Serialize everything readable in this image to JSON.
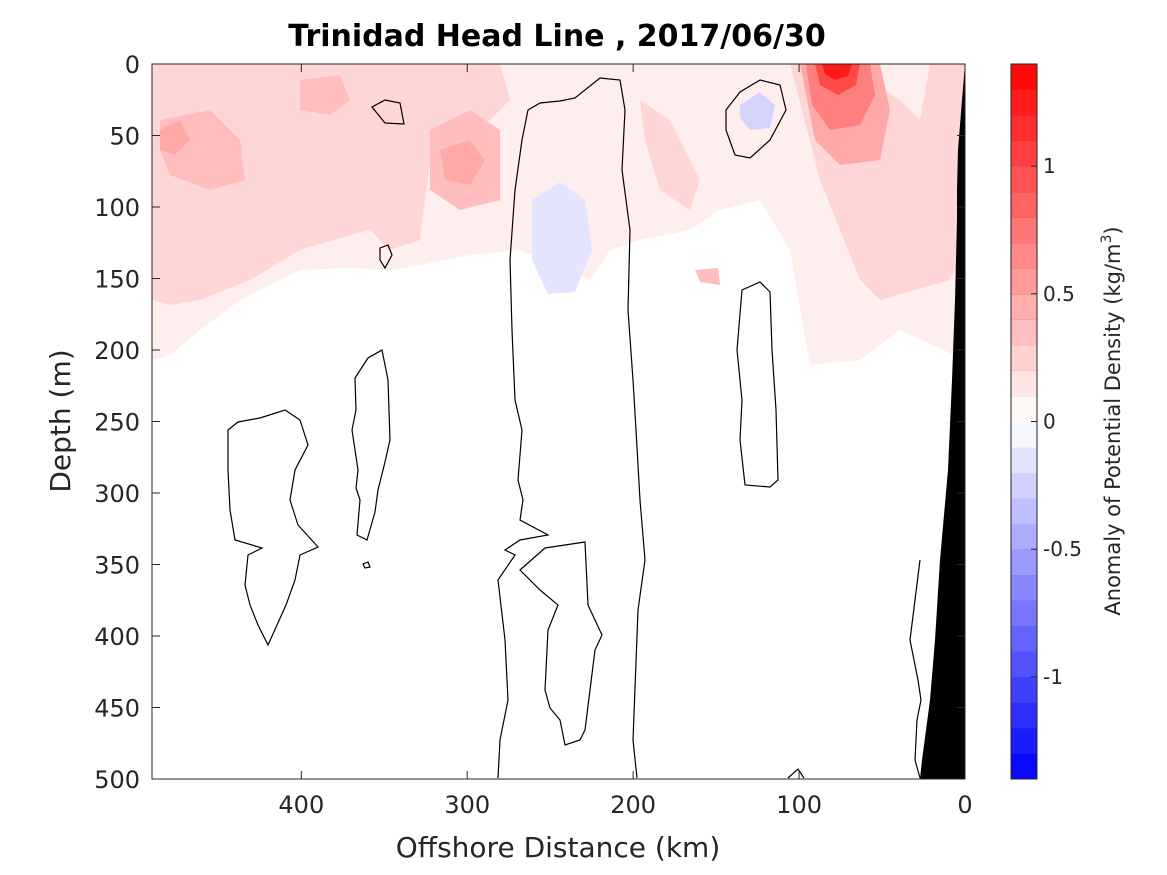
{
  "chart_data": {
    "type": "heatmap",
    "title": "Trinidad Head Line , 2017/06/30",
    "xlabel": "Offshore Distance (km)",
    "ylabel": "Depth (m)",
    "xlim": [
      490,
      0
    ],
    "ylim": [
      0,
      500
    ],
    "x_reversed": true,
    "y_reversed": true,
    "x_ticks": [
      400,
      300,
      200,
      100,
      0
    ],
    "x_tick_labels": [
      "400",
      "300",
      "200",
      "100",
      "0"
    ],
    "y_ticks": [
      0,
      50,
      100,
      150,
      200,
      250,
      300,
      350,
      400,
      450,
      500
    ],
    "y_tick_labels": [
      "0",
      "50",
      "100",
      "150",
      "200",
      "250",
      "300",
      "350",
      "400",
      "450",
      "500"
    ],
    "colorbar": {
      "label_main": "Anomaly of Potential Density (kg/m",
      "label_sup": "3",
      "label_end": ")",
      "range": [
        -1.4,
        1.4
      ],
      "levels": 28,
      "ticks": [
        1,
        0.5,
        0,
        -0.5,
        -1
      ],
      "tick_labels": [
        "1",
        "0.5",
        "0",
        "-0.5",
        "-1"
      ],
      "colormap": "blue-white-red",
      "color_max": "#ff0000",
      "color_zero": "#ffffff",
      "color_min": "#0000ff"
    },
    "anomaly_features": [
      {
        "x_km": 80,
        "depth_m": 5,
        "value": 1.35
      },
      {
        "x_km": 70,
        "depth_m": 60,
        "value": 0.75
      },
      {
        "x_km": 60,
        "depth_m": 120,
        "value": 0.45
      },
      {
        "x_km": 470,
        "depth_m": 65,
        "value": 0.4
      },
      {
        "x_km": 420,
        "depth_m": 80,
        "value": 0.35
      },
      {
        "x_km": 290,
        "depth_m": 85,
        "value": 0.35
      },
      {
        "x_km": 150,
        "depth_m": 50,
        "value": 0.25
      },
      {
        "x_km": 345,
        "depth_m": 55,
        "value": 0.05
      },
      {
        "x_km": 125,
        "depth_m": 35,
        "value": -0.15
      },
      {
        "x_km": 245,
        "depth_m": 120,
        "value": -0.1
      }
    ],
    "bathymetry_fill": "#000000",
    "contour_color": "#000000"
  }
}
